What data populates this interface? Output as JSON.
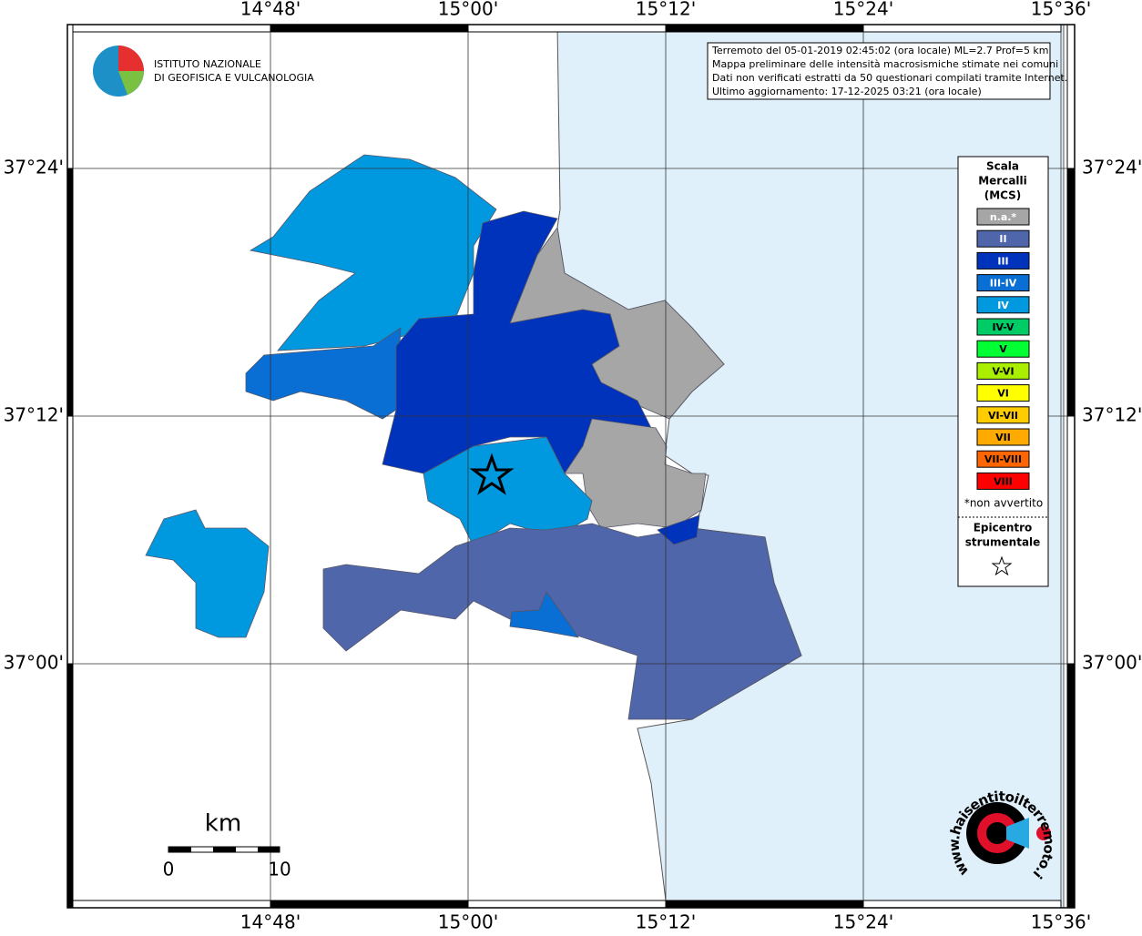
{
  "map": {
    "lon_labels": [
      "14°48'",
      "15°00'",
      "15°12'",
      "15°24'",
      "15°36'"
    ],
    "lat_labels": [
      "37°24'",
      "37°12'",
      "37°00'"
    ]
  },
  "info_box": {
    "lines": [
      "Terremoto del 05-01-2019 02:45:02 (ora locale) ML=2.7 Prof=5 km",
      "Mappa preliminare delle intensità macrosismiche stimate nei comuni",
      "Dati non verificati estratti da 50 questionari compilati tramite Internet.",
      "Ultimo aggiornamento: 17-12-2025 03:21 (ora locale)"
    ]
  },
  "logo": {
    "lines": [
      "ISTITUTO NAZIONALE",
      "DI GEOFISICA E VULCANOLOGIA"
    ]
  },
  "legend": {
    "title": [
      "Scala",
      "Mercalli",
      "(MCS)"
    ],
    "items": [
      {
        "label": "n.a.*",
        "color": "#a6a6a6"
      },
      {
        "label": "II",
        "color": "#5066ab"
      },
      {
        "label": "III",
        "color": "#0033bb"
      },
      {
        "label": "III-IV",
        "color": "#0a6fd4"
      },
      {
        "label": "IV",
        "color": "#0099e0"
      },
      {
        "label": "IV-V",
        "color": "#00cc66"
      },
      {
        "label": "V",
        "color": "#00ff33"
      },
      {
        "label": "V-VI",
        "color": "#aaee00"
      },
      {
        "label": "VI",
        "color": "#ffff00"
      },
      {
        "label": "VI-VII",
        "color": "#ffcc00"
      },
      {
        "label": "VII",
        "color": "#ffaa00"
      },
      {
        "label": "VII-VIII",
        "color": "#ff6600"
      },
      {
        "label": "VIII",
        "color": "#ff0000"
      }
    ],
    "note": "*non avvertito",
    "epicentre": [
      "Epicentro",
      "strumentale"
    ]
  },
  "scale_bar": {
    "unit": "km",
    "labels": [
      "0",
      "10"
    ]
  },
  "watermark": "www.haisentitoilterremoto.it"
}
